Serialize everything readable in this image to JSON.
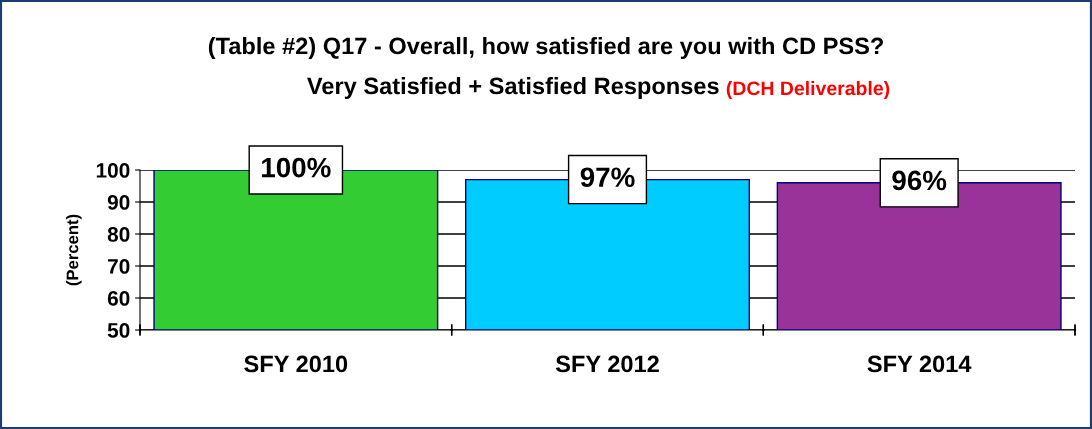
{
  "chart_data": {
    "type": "bar",
    "title": "(Table #2) Q17 - Overall, how satisfied are you with CD PSS?",
    "subtitle": "Very Satisfied + Satisfied Responses",
    "annotations": [
      "(DCH Deliverable)"
    ],
    "ylabel": "(Percent)",
    "categories": [
      "SFY 2010",
      "SFY 2012",
      "SFY 2014"
    ],
    "values": [
      100,
      97,
      96
    ],
    "colors": [
      "#33cc33",
      "#00ccff",
      "#993399"
    ],
    "value_labels": [
      "100%",
      "97%",
      "96%"
    ],
    "ylim": [
      50,
      100
    ],
    "yticks": [
      50,
      60,
      70,
      80,
      90,
      100
    ],
    "grid": "y"
  }
}
